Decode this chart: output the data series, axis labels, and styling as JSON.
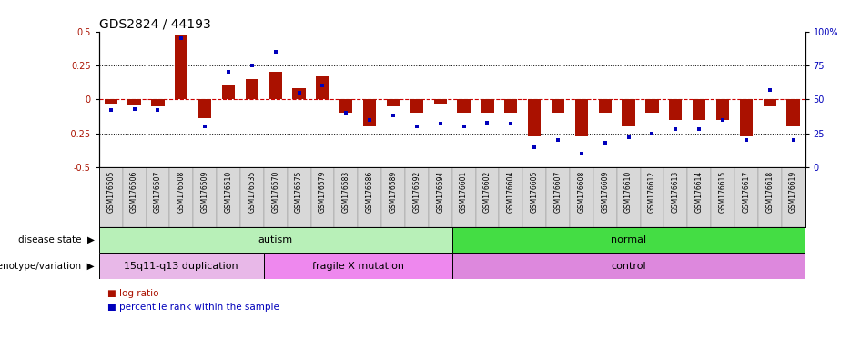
{
  "title": "GDS2824 / 44193",
  "samples": [
    "GSM176505",
    "GSM176506",
    "GSM176507",
    "GSM176508",
    "GSM176509",
    "GSM176510",
    "GSM176535",
    "GSM176570",
    "GSM176575",
    "GSM176579",
    "GSM176583",
    "GSM176586",
    "GSM176589",
    "GSM176592",
    "GSM176594",
    "GSM176601",
    "GSM176602",
    "GSM176604",
    "GSM176605",
    "GSM176607",
    "GSM176608",
    "GSM176609",
    "GSM176610",
    "GSM176612",
    "GSM176613",
    "GSM176614",
    "GSM176615",
    "GSM176617",
    "GSM176618",
    "GSM176619"
  ],
  "log_ratio": [
    -0.03,
    -0.04,
    -0.05,
    0.48,
    -0.14,
    0.1,
    0.15,
    0.2,
    0.08,
    0.17,
    -0.1,
    -0.2,
    -0.05,
    -0.1,
    -0.03,
    -0.1,
    -0.1,
    -0.1,
    -0.27,
    -0.1,
    -0.27,
    -0.1,
    -0.2,
    -0.1,
    -0.15,
    -0.15,
    -0.15,
    -0.27,
    -0.05,
    -0.2
  ],
  "percentile": [
    42,
    43,
    42,
    95,
    30,
    70,
    75,
    85,
    55,
    60,
    40,
    35,
    38,
    30,
    32,
    30,
    33,
    32,
    15,
    20,
    10,
    18,
    22,
    25,
    28,
    28,
    35,
    20,
    57,
    20
  ],
  "disease_state_groups": [
    {
      "label": "autism",
      "start": 0,
      "end": 15,
      "color": "#b8f0b8"
    },
    {
      "label": "normal",
      "start": 15,
      "end": 30,
      "color": "#44dd44"
    }
  ],
  "genotype_groups": [
    {
      "label": "15q11-q13 duplication",
      "start": 0,
      "end": 7,
      "color": "#e8b8e8"
    },
    {
      "label": "fragile X mutation",
      "start": 7,
      "end": 15,
      "color": "#ee88ee"
    },
    {
      "label": "control",
      "start": 15,
      "end": 30,
      "color": "#dd88dd"
    }
  ],
  "bar_color": "#aa1100",
  "dot_color": "#0000bb",
  "ylim": [
    -0.5,
    0.5
  ],
  "y2lim": [
    0,
    100
  ],
  "yticks": [
    -0.5,
    -0.25,
    0,
    0.25,
    0.5
  ],
  "y2ticks": [
    0,
    25,
    50,
    75,
    100
  ],
  "hline_color": "#cc0000",
  "dotted_color": "black",
  "tick_bg_color": "#d8d8d8",
  "background_color": "#ffffff",
  "left_label_disease": "disease state",
  "left_label_genotype": "genotype/variation",
  "legend_log": "log ratio",
  "legend_pct": "percentile rank within the sample",
  "title_fontsize": 10,
  "tick_fontsize": 5.5,
  "bar_width": 0.55
}
